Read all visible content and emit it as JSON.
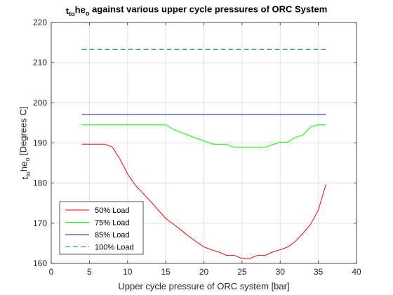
{
  "chart_data": {
    "type": "line",
    "title": {
      "parts": [
        {
          "text": "t",
          "style": "normal"
        },
        {
          "text": "to",
          "style": "sub"
        },
        {
          "text": "he",
          "style": "normal"
        },
        {
          "text": "o",
          "style": "sub"
        },
        {
          "text": " against various upper cycle pressures of ORC System",
          "style": "normal"
        }
      ]
    },
    "xlabel": "Upper cycle pressure of ORC system [bar]",
    "ylabel": {
      "parts": [
        {
          "text": "t",
          "style": "normal"
        },
        {
          "text": "to",
          "style": "sub"
        },
        {
          "text": "he",
          "style": "normal"
        },
        {
          "text": "o",
          "style": "sub"
        },
        {
          "text": " [Degrees C]",
          "style": "normal"
        }
      ]
    },
    "xlim": [
      0,
      40
    ],
    "ylim": [
      160,
      220
    ],
    "xticks": [
      0,
      5,
      10,
      15,
      20,
      25,
      30,
      35,
      40
    ],
    "yticks": [
      160,
      170,
      180,
      190,
      200,
      210,
      220
    ],
    "grid": true,
    "legend_position": "bottom-left",
    "series": [
      {
        "name": "50% Load",
        "color": "#ff0000",
        "dash": "solid",
        "x": [
          4,
          5,
          6,
          7,
          8,
          9,
          10,
          11,
          12,
          13,
          14,
          15,
          16,
          17,
          18,
          19,
          20,
          21,
          22,
          23,
          24,
          25,
          26,
          27,
          28,
          29,
          30,
          31,
          32,
          33,
          34,
          35,
          36
        ],
        "y": [
          189.7,
          189.7,
          189.7,
          189.7,
          189.0,
          186.0,
          182.3,
          179.5,
          177.5,
          175.5,
          173.3,
          171.2,
          169.8,
          168.3,
          166.8,
          165.4,
          164.1,
          163.4,
          162.8,
          162.0,
          162.0,
          161.2,
          161.2,
          162.0,
          162.0,
          162.8,
          163.4,
          164.1,
          165.5,
          167.5,
          169.8,
          173.3,
          179.7
        ]
      },
      {
        "name": "75% Load",
        "color": "#00ff00",
        "dash": "solid",
        "x": [
          4,
          5,
          6,
          7,
          8,
          9,
          10,
          11,
          12,
          13,
          14,
          15,
          16,
          17,
          18,
          19,
          20,
          21,
          22,
          23,
          24,
          25,
          26,
          27,
          28,
          29,
          30,
          31,
          32,
          33,
          34,
          35,
          36
        ],
        "y": [
          194.5,
          194.5,
          194.5,
          194.5,
          194.5,
          194.5,
          194.5,
          194.5,
          194.5,
          194.5,
          194.5,
          194.5,
          193.4,
          192.6,
          191.9,
          191.2,
          190.5,
          189.8,
          189.6,
          189.6,
          188.9,
          188.9,
          188.9,
          188.9,
          188.9,
          189.6,
          190.2,
          190.2,
          191.4,
          192.0,
          194.0,
          194.5,
          194.5
        ]
      },
      {
        "name": "85% Load",
        "color": "#1a1aa8",
        "dash": "solid",
        "x": [
          4,
          36
        ],
        "y": [
          197.1,
          197.1
        ]
      },
      {
        "name": "100% Load",
        "color": "#0072bd",
        "dash": "dashed",
        "x": [
          4,
          36
        ],
        "y": [
          213.3,
          213.3
        ]
      }
    ]
  }
}
